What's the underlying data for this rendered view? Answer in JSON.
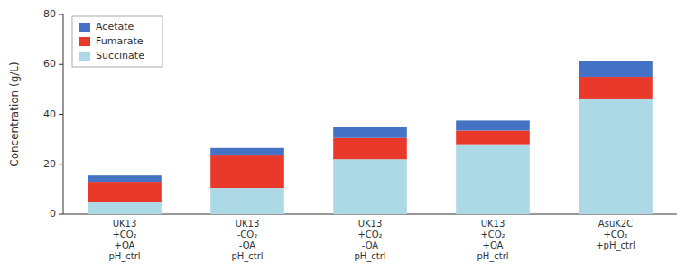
{
  "chart_data": {
    "type": "bar",
    "stacked": true,
    "categories": [
      "UK13\n+CO₂\n+OA\npH_ctrl",
      "UK13\n-CO₂\n-OA\npH_ctrl",
      "UK13\n+CO₂\n-OA\npH_ctrl",
      "UK13\n+CO₂\n+OA\npH_ctrl",
      "AsuK2C\n+CO₂\n+pH_ctrl"
    ],
    "series": [
      {
        "name": "Succinate",
        "color": "#add8e6",
        "values": [
          5.0,
          10.5,
          22.0,
          28.0,
          46.0
        ]
      },
      {
        "name": "Fumarate",
        "color": "#e8392b",
        "values": [
          8.0,
          13.0,
          8.5,
          5.5,
          9.0
        ]
      },
      {
        "name": "Acetate",
        "color": "#4472c4",
        "values": [
          2.5,
          3.0,
          4.5,
          4.0,
          6.5
        ]
      }
    ],
    "ylabel": "Concentration (g/L)",
    "ylim": [
      0,
      80
    ],
    "yticks": [
      0,
      20,
      40,
      60,
      80
    ],
    "legend": "upper left"
  }
}
